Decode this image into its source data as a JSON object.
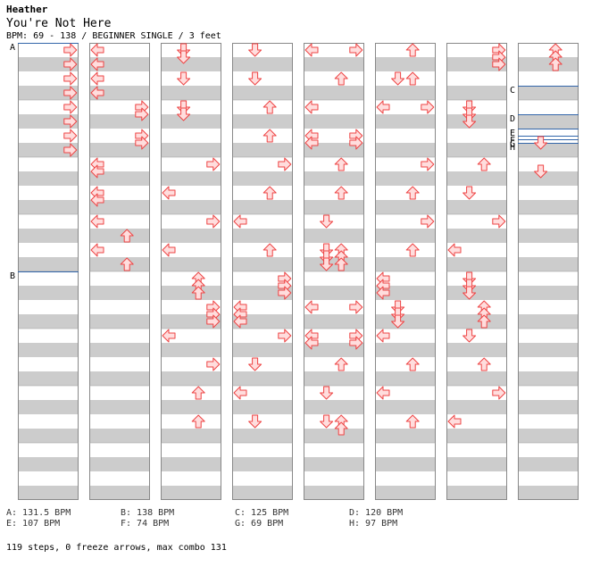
{
  "header": {
    "artist": "Heather",
    "title": "You're Not Here",
    "info": "BPM: 69 - 138 / BEGINNER SINGLE / 3 feet"
  },
  "colors": {
    "stripe": "#cccccc",
    "border": "#888888",
    "arrow_fill": "#ffdddd",
    "arrow_stroke": "#ee4444",
    "marker_line": "#3366aa"
  },
  "chart": {
    "columns": 8,
    "measures_per_column": 8,
    "lanes": [
      "left",
      "down",
      "up",
      "right"
    ],
    "markers": [
      {
        "label": "A",
        "column": 0,
        "beat": 0
      },
      {
        "label": "B",
        "column": 0,
        "beat": 16
      },
      {
        "label": "C",
        "column": 7,
        "beat": 3
      },
      {
        "label": "D",
        "column": 7,
        "beat": 5
      },
      {
        "label": "E",
        "column": 7,
        "beat": 6
      },
      {
        "label": "F",
        "column": 7,
        "beat": 6.5
      },
      {
        "label": "G",
        "column": 7,
        "beat": 6.75
      },
      {
        "label": "H",
        "column": 7,
        "beat": 7
      }
    ],
    "notes": [
      [
        [
          0,
          "right"
        ],
        [
          1,
          "right"
        ],
        [
          2,
          "right"
        ],
        [
          3,
          "right"
        ],
        [
          4,
          "right"
        ],
        [
          5,
          "right"
        ],
        [
          6,
          "right"
        ],
        [
          7,
          "right"
        ]
      ],
      [
        [
          0,
          "left"
        ],
        [
          1,
          "left"
        ],
        [
          2,
          "left"
        ],
        [
          3,
          "left"
        ],
        [
          4,
          "right"
        ],
        [
          4.5,
          "right"
        ],
        [
          6,
          "right"
        ],
        [
          6.5,
          "right"
        ],
        [
          8,
          "left"
        ],
        [
          8.5,
          "left"
        ],
        [
          10,
          "left"
        ],
        [
          10.5,
          "left"
        ],
        [
          12,
          "left"
        ],
        [
          13,
          "up"
        ],
        [
          14,
          "left"
        ],
        [
          15,
          "up"
        ]
      ],
      [
        [
          0,
          "down"
        ],
        [
          0.5,
          "down"
        ],
        [
          2,
          "down"
        ],
        [
          4,
          "down"
        ],
        [
          4.5,
          "down"
        ],
        [
          8,
          "right"
        ],
        [
          10,
          "left"
        ],
        [
          12,
          "right"
        ],
        [
          14,
          "left"
        ],
        [
          16,
          "up"
        ],
        [
          16.5,
          "up"
        ],
        [
          17,
          "up"
        ],
        [
          18,
          "right"
        ],
        [
          18.5,
          "right"
        ],
        [
          19,
          "right"
        ],
        [
          20,
          "left"
        ],
        [
          22,
          "right"
        ],
        [
          24,
          "up"
        ],
        [
          26,
          "up"
        ]
      ],
      [
        [
          0,
          "down"
        ],
        [
          2,
          "down"
        ],
        [
          4,
          "up"
        ],
        [
          6,
          "up"
        ],
        [
          8,
          "right"
        ],
        [
          10,
          "up"
        ],
        [
          12,
          "left"
        ],
        [
          14,
          "up"
        ],
        [
          16,
          "right"
        ],
        [
          16.5,
          "right"
        ],
        [
          17,
          "right"
        ],
        [
          18,
          "left"
        ],
        [
          18.5,
          "left"
        ],
        [
          19,
          "left"
        ],
        [
          20,
          "right"
        ],
        [
          22,
          "down"
        ],
        [
          24,
          "left"
        ],
        [
          26,
          "down"
        ]
      ],
      [
        [
          0,
          "left"
        ],
        [
          0,
          "right"
        ],
        [
          2,
          "up"
        ],
        [
          4,
          "left"
        ],
        [
          6,
          "left"
        ],
        [
          6,
          "right"
        ],
        [
          6.5,
          "left"
        ],
        [
          6.5,
          "right"
        ],
        [
          8,
          "up"
        ],
        [
          10,
          "up"
        ],
        [
          12,
          "down"
        ],
        [
          14,
          "up"
        ],
        [
          14.5,
          "up"
        ],
        [
          15,
          "up"
        ],
        [
          18,
          "left"
        ],
        [
          20,
          "left"
        ],
        [
          20,
          "right"
        ],
        [
          20.5,
          "left"
        ],
        [
          20.5,
          "right"
        ],
        [
          22,
          "up"
        ],
        [
          24,
          "down"
        ],
        [
          26,
          "up"
        ],
        [
          26.5,
          "up"
        ],
        [
          26,
          "down"
        ],
        [
          18,
          "right"
        ],
        [
          14,
          "down"
        ],
        [
          14.5,
          "down"
        ],
        [
          15,
          "down"
        ]
      ],
      [
        [
          0,
          "up"
        ],
        [
          2,
          "down"
        ],
        [
          2,
          "up"
        ],
        [
          4,
          "left"
        ],
        [
          4,
          "right"
        ],
        [
          8,
          "right"
        ],
        [
          10,
          "up"
        ],
        [
          12,
          "right"
        ],
        [
          14,
          "up"
        ],
        [
          16,
          "left"
        ],
        [
          16.5,
          "left"
        ],
        [
          17,
          "left"
        ],
        [
          18,
          "down"
        ],
        [
          18.5,
          "down"
        ],
        [
          19,
          "down"
        ],
        [
          20,
          "left"
        ],
        [
          22,
          "up"
        ],
        [
          24,
          "left"
        ],
        [
          26,
          "up"
        ]
      ],
      [
        [
          0,
          "right"
        ],
        [
          0.5,
          "right"
        ],
        [
          1,
          "right"
        ],
        [
          4,
          "down"
        ],
        [
          4.5,
          "down"
        ],
        [
          5,
          "down"
        ],
        [
          8,
          "up"
        ],
        [
          10,
          "down"
        ],
        [
          12,
          "right"
        ],
        [
          14,
          "left"
        ],
        [
          16,
          "down"
        ],
        [
          16.5,
          "down"
        ],
        [
          17,
          "down"
        ],
        [
          18,
          "up"
        ],
        [
          18.5,
          "up"
        ],
        [
          19,
          "up"
        ],
        [
          20,
          "down"
        ],
        [
          22,
          "up"
        ],
        [
          24,
          "right"
        ],
        [
          26,
          "left"
        ]
      ],
      [
        [
          0,
          "up"
        ],
        [
          0.5,
          "up"
        ],
        [
          1,
          "up"
        ],
        [
          6.5,
          "down"
        ],
        [
          8.5,
          "down"
        ]
      ]
    ]
  },
  "bpm_changes": [
    {
      "text": "A: 131.5 BPM"
    },
    {
      "text": "B: 138 BPM"
    },
    {
      "text": "C: 125 BPM"
    },
    {
      "text": "D: 120 BPM"
    },
    {
      "text": "E: 107 BPM"
    },
    {
      "text": "F: 74 BPM"
    },
    {
      "text": "G: 69 BPM"
    },
    {
      "text": "H: 97 BPM"
    }
  ],
  "footer": "119 steps, 0 freeze arrows, max combo 131"
}
